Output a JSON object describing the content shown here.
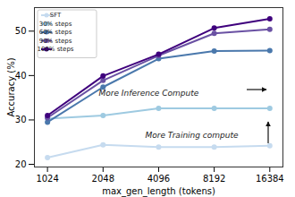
{
  "chart_data": {
    "type": "line",
    "x_label": "max_gen_length (tokens)",
    "y_label": "Accuracy (%)",
    "x": [
      1024,
      2048,
      4096,
      8192,
      16384
    ],
    "series": [
      {
        "name": "SFT",
        "color": "#c6dbef",
        "values": [
          21.5,
          24.4,
          23.9,
          23.9,
          24.2
        ]
      },
      {
        "name": "30% steps",
        "color": "#9ecae1",
        "values": [
          30.3,
          31.0,
          32.6,
          32.6,
          32.6
        ]
      },
      {
        "name": "60% steps",
        "color": "#4a78ac",
        "values": [
          29.5,
          37.4,
          43.8,
          45.5,
          45.6
        ]
      },
      {
        "name": "90% steps",
        "color": "#6a51a3",
        "values": [
          30.5,
          38.9,
          44.5,
          49.5,
          50.4
        ]
      },
      {
        "name": "100% steps",
        "color": "#3f007d",
        "values": [
          31.0,
          39.9,
          44.8,
          50.7,
          52.8
        ]
      }
    ],
    "xlim": [
      870,
      19300
    ],
    "ylim": [
      19.4,
      55.3
    ],
    "xticks": [
      1024,
      2048,
      4096,
      8192,
      16384
    ],
    "yticks": [
      20,
      30,
      40,
      50
    ],
    "log": "x",
    "legend": "upper left",
    "marker": "circle",
    "annotations": [
      "More Inference Compute",
      "More Training compute"
    ]
  }
}
